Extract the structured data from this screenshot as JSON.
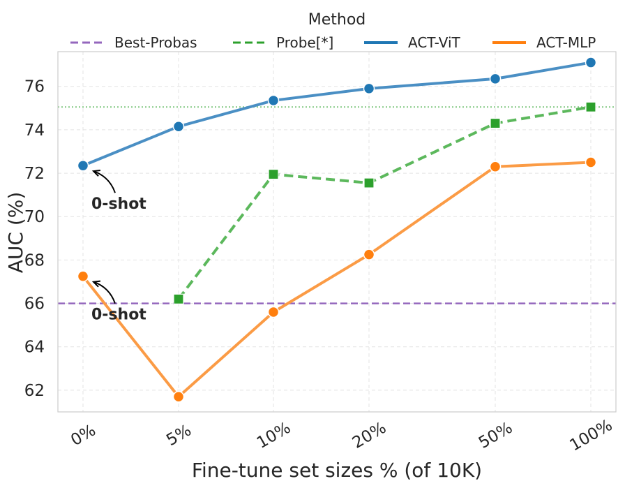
{
  "chart_data": {
    "type": "line",
    "title": "",
    "xlabel": "Fine-tune set sizes % (of 10K)",
    "ylabel": "AUC (%)",
    "categories": [
      "0%",
      "5%",
      "10%",
      "20%",
      "50%",
      "100%"
    ],
    "ylim": [
      61.0,
      77.6
    ],
    "yticks": [
      62,
      64,
      66,
      68,
      70,
      72,
      74,
      76
    ],
    "grid": true,
    "legend": {
      "title": "Method",
      "placement": "top",
      "entries": [
        {
          "label": "Best-Probas",
          "color": "#9467bd",
          "style": "dashed"
        },
        {
          "label": "Probe[*]",
          "color": "#2ca02c",
          "style": "dashed"
        },
        {
          "label": "ACT-ViT",
          "color": "#1f77b4",
          "style": "solid"
        },
        {
          "label": "ACT-MLP",
          "color": "#ff7f0e",
          "style": "solid"
        }
      ]
    },
    "series": [
      {
        "name": "ACT-ViT",
        "color": "#1f77b4",
        "line_color": "#4a8fc4",
        "marker": "circle",
        "dash": "solid",
        "values": [
          72.35,
          74.15,
          75.35,
          75.9,
          76.35,
          77.1
        ]
      },
      {
        "name": "ACT-MLP",
        "color": "#ff7f0e",
        "line_color": "#fb9b45",
        "marker": "circle",
        "dash": "solid",
        "values": [
          67.25,
          61.7,
          65.6,
          68.25,
          72.3,
          72.5
        ]
      },
      {
        "name": "Probe[*]",
        "color": "#2ca02c",
        "line_color": "#5cb85c",
        "marker": "square",
        "dash": "dashed",
        "values": [
          null,
          66.2,
          71.95,
          71.55,
          74.3,
          75.05
        ]
      }
    ],
    "hlines": [
      {
        "name": "Best-Probas",
        "value": 66.0,
        "color": "#9467bd",
        "style": "dashed"
      },
      {
        "name": "Probe[*] reference",
        "value": 75.05,
        "color": "#82c882",
        "style": "dotted"
      }
    ],
    "annotations": [
      {
        "text": "0-shot",
        "series": "ACT-ViT",
        "category": "0%"
      },
      {
        "text": "0-shot",
        "series": "ACT-MLP",
        "category": "0%"
      }
    ]
  }
}
